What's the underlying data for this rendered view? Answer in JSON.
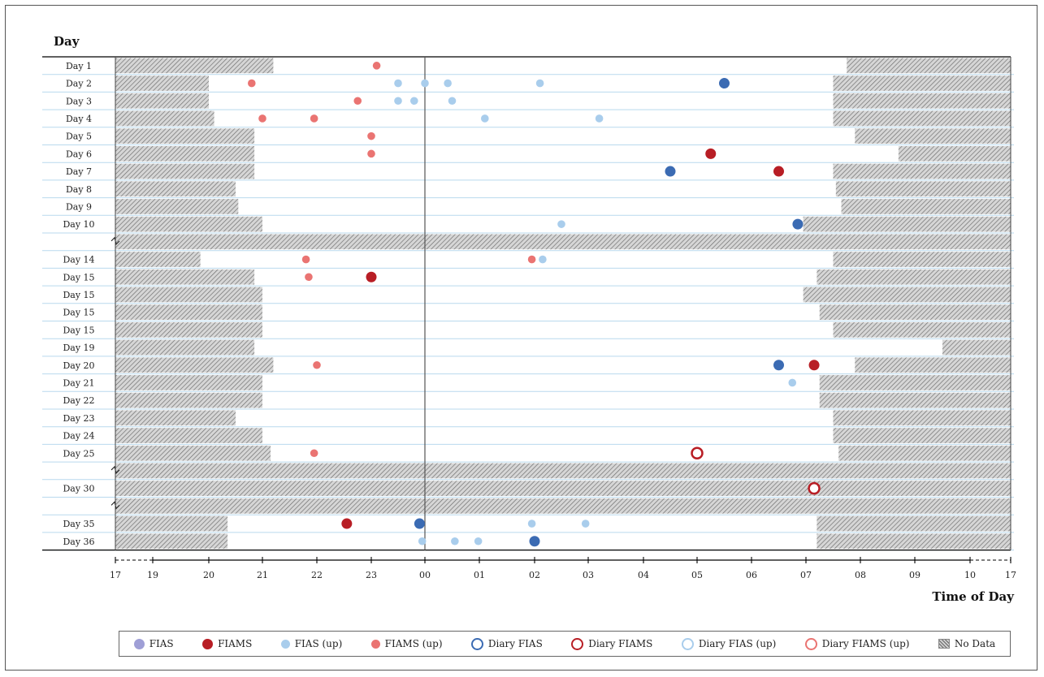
{
  "chart_data": {
    "type": "scatter",
    "ylabel": "Day",
    "xlabel": "Time of Day",
    "x_ticks": [
      "17",
      "19",
      "20",
      "21",
      "22",
      "23",
      "00",
      "01",
      "02",
      "03",
      "04",
      "05",
      "06",
      "07",
      "08",
      "09",
      "10",
      "17"
    ],
    "rows": [
      {
        "label": "Day 1",
        "gap": false,
        "nodata": [
          [
            17.0,
            21.2
          ],
          [
            31.75,
            41.0
          ]
        ]
      },
      {
        "label": "Day 2",
        "gap": false,
        "nodata": [
          [
            17.0,
            20.0
          ],
          [
            31.5,
            41.0
          ]
        ]
      },
      {
        "label": "Day 3",
        "gap": false,
        "nodata": [
          [
            17.0,
            20.0
          ],
          [
            31.5,
            41.0
          ]
        ]
      },
      {
        "label": "Day 4",
        "gap": false,
        "nodata": [
          [
            17.0,
            20.1
          ],
          [
            31.5,
            41.0
          ]
        ]
      },
      {
        "label": "Day 5",
        "gap": false,
        "nodata": [
          [
            17.0,
            20.85
          ],
          [
            31.9,
            41.0
          ]
        ]
      },
      {
        "label": "Day 6",
        "gap": false,
        "nodata": [
          [
            17.0,
            20.85
          ],
          [
            32.7,
            41.0
          ]
        ]
      },
      {
        "label": "Day 7",
        "gap": false,
        "nodata": [
          [
            17.0,
            20.85
          ],
          [
            31.5,
            41.0
          ]
        ]
      },
      {
        "label": "Day 8",
        "gap": false,
        "nodata": [
          [
            17.0,
            20.5
          ],
          [
            31.55,
            41.0
          ]
        ]
      },
      {
        "label": "Day 9",
        "gap": false,
        "nodata": [
          [
            17.0,
            20.55
          ],
          [
            31.65,
            41.0
          ]
        ]
      },
      {
        "label": "Day 10",
        "gap": false,
        "nodata": [
          [
            17.0,
            21.0
          ],
          [
            30.95,
            41.0
          ]
        ]
      },
      {
        "label": "",
        "gap": true,
        "nodata": [
          [
            17.0,
            41.0
          ]
        ]
      },
      {
        "label": "Day 14",
        "gap": false,
        "nodata": [
          [
            17.0,
            19.85
          ],
          [
            31.5,
            41.0
          ]
        ]
      },
      {
        "label": "Day 15",
        "gap": false,
        "nodata": [
          [
            17.0,
            20.85
          ],
          [
            31.2,
            41.0
          ]
        ]
      },
      {
        "label": "Day 15",
        "gap": false,
        "nodata": [
          [
            17.0,
            21.0
          ],
          [
            30.95,
            41.0
          ]
        ]
      },
      {
        "label": "Day 15",
        "gap": false,
        "nodata": [
          [
            17.0,
            21.0
          ],
          [
            31.25,
            41.0
          ]
        ]
      },
      {
        "label": "Day 15",
        "gap": false,
        "nodata": [
          [
            17.0,
            21.0
          ],
          [
            31.5,
            41.0
          ]
        ]
      },
      {
        "label": "Day 19",
        "gap": false,
        "nodata": [
          [
            17.0,
            20.85
          ],
          [
            33.5,
            41.0
          ]
        ]
      },
      {
        "label": "Day 20",
        "gap": false,
        "nodata": [
          [
            17.0,
            21.2
          ],
          [
            31.9,
            41.0
          ]
        ]
      },
      {
        "label": "Day 21",
        "gap": false,
        "nodata": [
          [
            17.0,
            21.0
          ],
          [
            31.25,
            41.0
          ]
        ]
      },
      {
        "label": "Day 22",
        "gap": false,
        "nodata": [
          [
            17.0,
            21.0
          ],
          [
            31.25,
            41.0
          ]
        ]
      },
      {
        "label": "Day 23",
        "gap": false,
        "nodata": [
          [
            17.0,
            20.5
          ],
          [
            31.5,
            41.0
          ]
        ]
      },
      {
        "label": "Day 24",
        "gap": false,
        "nodata": [
          [
            17.0,
            21.0
          ],
          [
            31.5,
            41.0
          ]
        ]
      },
      {
        "label": "Day 25",
        "gap": false,
        "nodata": [
          [
            17.0,
            21.15
          ],
          [
            31.6,
            41.0
          ]
        ]
      },
      {
        "label": "",
        "gap": true,
        "nodata": [
          [
            17.0,
            41.0
          ]
        ]
      },
      {
        "label": "Day 30",
        "gap": false,
        "nodata": [
          [
            17.0,
            41.0
          ]
        ]
      },
      {
        "label": "",
        "gap": true,
        "nodata": [
          [
            17.0,
            41.0
          ]
        ]
      },
      {
        "label": "Day 35",
        "gap": false,
        "nodata": [
          [
            17.0,
            20.35
          ],
          [
            31.2,
            41.0
          ]
        ]
      },
      {
        "label": "Day 36",
        "gap": false,
        "nodata": [
          [
            17.0,
            20.35
          ],
          [
            31.2,
            41.0
          ]
        ]
      }
    ],
    "events": [
      {
        "row": 0,
        "x": 23.1,
        "type": "fiams_up"
      },
      {
        "row": 1,
        "x": 20.8,
        "type": "fiams_up"
      },
      {
        "row": 1,
        "x": 23.5,
        "type": "fias_up"
      },
      {
        "row": 1,
        "x": 24.0,
        "type": "fias_up"
      },
      {
        "row": 1,
        "x": 24.42,
        "type": "fias_up"
      },
      {
        "row": 1,
        "x": 26.1,
        "type": "fias_up"
      },
      {
        "row": 1,
        "x": 29.5,
        "type": "fias"
      },
      {
        "row": 2,
        "x": 22.75,
        "type": "fiams_up"
      },
      {
        "row": 2,
        "x": 23.5,
        "type": "fias_up"
      },
      {
        "row": 2,
        "x": 23.8,
        "type": "fias_up"
      },
      {
        "row": 2,
        "x": 24.5,
        "type": "fias_up"
      },
      {
        "row": 3,
        "x": 21.0,
        "type": "fiams_up"
      },
      {
        "row": 3,
        "x": 21.95,
        "type": "fiams_up"
      },
      {
        "row": 3,
        "x": 25.1,
        "type": "fias_up"
      },
      {
        "row": 3,
        "x": 27.2,
        "type": "fias_up"
      },
      {
        "row": 4,
        "x": 23.0,
        "type": "fiams_up"
      },
      {
        "row": 5,
        "x": 23.0,
        "type": "fiams_up"
      },
      {
        "row": 5,
        "x": 29.25,
        "type": "fiams"
      },
      {
        "row": 6,
        "x": 28.5,
        "type": "fias"
      },
      {
        "row": 6,
        "x": 30.5,
        "type": "fiams"
      },
      {
        "row": 9,
        "x": 26.5,
        "type": "fias_up"
      },
      {
        "row": 9,
        "x": 30.85,
        "type": "fias"
      },
      {
        "row": 11,
        "x": 21.8,
        "type": "fiams_up"
      },
      {
        "row": 11,
        "x": 25.95,
        "type": "fiams_up"
      },
      {
        "row": 11,
        "x": 26.15,
        "type": "fias_up"
      },
      {
        "row": 12,
        "x": 21.85,
        "type": "fiams_up"
      },
      {
        "row": 12,
        "x": 23.0,
        "type": "fiams"
      },
      {
        "row": 17,
        "x": 22.0,
        "type": "fiams_up"
      },
      {
        "row": 17,
        "x": 30.5,
        "type": "fias"
      },
      {
        "row": 17,
        "x": 31.15,
        "type": "fiams"
      },
      {
        "row": 18,
        "x": 30.75,
        "type": "fias_up"
      },
      {
        "row": 22,
        "x": 21.95,
        "type": "fiams_up"
      },
      {
        "row": 22,
        "x": 29.0,
        "type": "diary_fiams"
      },
      {
        "row": 24,
        "x": 31.15,
        "type": "diary_fiams"
      },
      {
        "row": 26,
        "x": 22.55,
        "type": "fiams"
      },
      {
        "row": 26,
        "x": 23.9,
        "type": "fias"
      },
      {
        "row": 26,
        "x": 25.95,
        "type": "fias_up"
      },
      {
        "row": 26,
        "x": 26.95,
        "type": "fias_up"
      },
      {
        "row": 27,
        "x": 23.95,
        "type": "fias_up"
      },
      {
        "row": 27,
        "x": 24.55,
        "type": "fias_up"
      },
      {
        "row": 27,
        "x": 24.98,
        "type": "fias_up"
      },
      {
        "row": 27,
        "x": 26.0,
        "type": "fias"
      }
    ],
    "legend": [
      {
        "key": "fias",
        "label": "FIAS"
      },
      {
        "key": "fiams",
        "label": "FIAMS"
      },
      {
        "key": "fias_up",
        "label": "FIAS (up)"
      },
      {
        "key": "fiams_up",
        "label": "FIAMS (up)"
      },
      {
        "key": "diary_fias",
        "label": "Diary FIAS"
      },
      {
        "key": "diary_fiams",
        "label": "Diary FIAMS"
      },
      {
        "key": "diary_fias_up",
        "label": "Diary FIAS (up)"
      },
      {
        "key": "diary_fiams_up",
        "label": "Diary FIAMS (up)"
      },
      {
        "key": "nodata",
        "label": "No Data"
      }
    ],
    "colors": {
      "fias": "#9f9fd6",
      "fias_event": "#3b6bb3",
      "fiams": "#b81e25",
      "fias_up": "#a9cdec",
      "fiams_up": "#ea7472",
      "diary_fias": "#3b6bb3",
      "diary_fiams": "#b81e25",
      "diary_fias_up": "#a9cdec",
      "diary_fiams_up": "#ea7472",
      "row_line": "#b9d9ee",
      "axis": "#000000",
      "midnight": "#555555"
    }
  }
}
